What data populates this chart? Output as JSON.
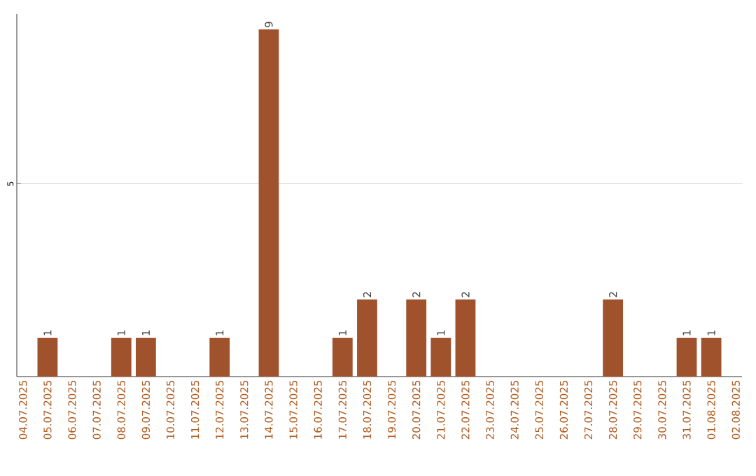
{
  "chart_data": {
    "type": "bar",
    "categories": [
      "04.07.2025",
      "05.07.2025",
      "06.07.2025",
      "07.07.2025",
      "08.07.2025",
      "09.07.2025",
      "10.07.2025",
      "11.07.2025",
      "12.07.2025",
      "13.07.2025",
      "14.07.2025",
      "15.07.2025",
      "16.07.2025",
      "17.07.2025",
      "18.07.2025",
      "19.07.2025",
      "20.07.2025",
      "21.07.2025",
      "22.07.2025",
      "23.07.2025",
      "24.07.2025",
      "25.07.2025",
      "26.07.2025",
      "27.07.2025",
      "28.07.2025",
      "29.07.2025",
      "30.07.2025",
      "31.07.2025",
      "01.08.2025",
      "02.08.2025"
    ],
    "values": [
      0,
      1,
      0,
      0,
      1,
      1,
      0,
      0,
      1,
      0,
      9,
      0,
      0,
      1,
      2,
      0,
      2,
      1,
      2,
      0,
      0,
      0,
      0,
      0,
      2,
      0,
      0,
      1,
      1,
      0
    ],
    "value_labels": [
      null,
      "1",
      null,
      null,
      "1",
      "1",
      null,
      null,
      "1",
      null,
      "9",
      null,
      null,
      "1",
      "2",
      null,
      "2",
      "1",
      "2",
      null,
      null,
      null,
      null,
      null,
      "2",
      null,
      null,
      "1",
      "1",
      null
    ],
    "color": "#a0522d",
    "ylim": [
      0,
      9.4
    ],
    "yticks": [
      5
    ],
    "grid": "y"
  }
}
